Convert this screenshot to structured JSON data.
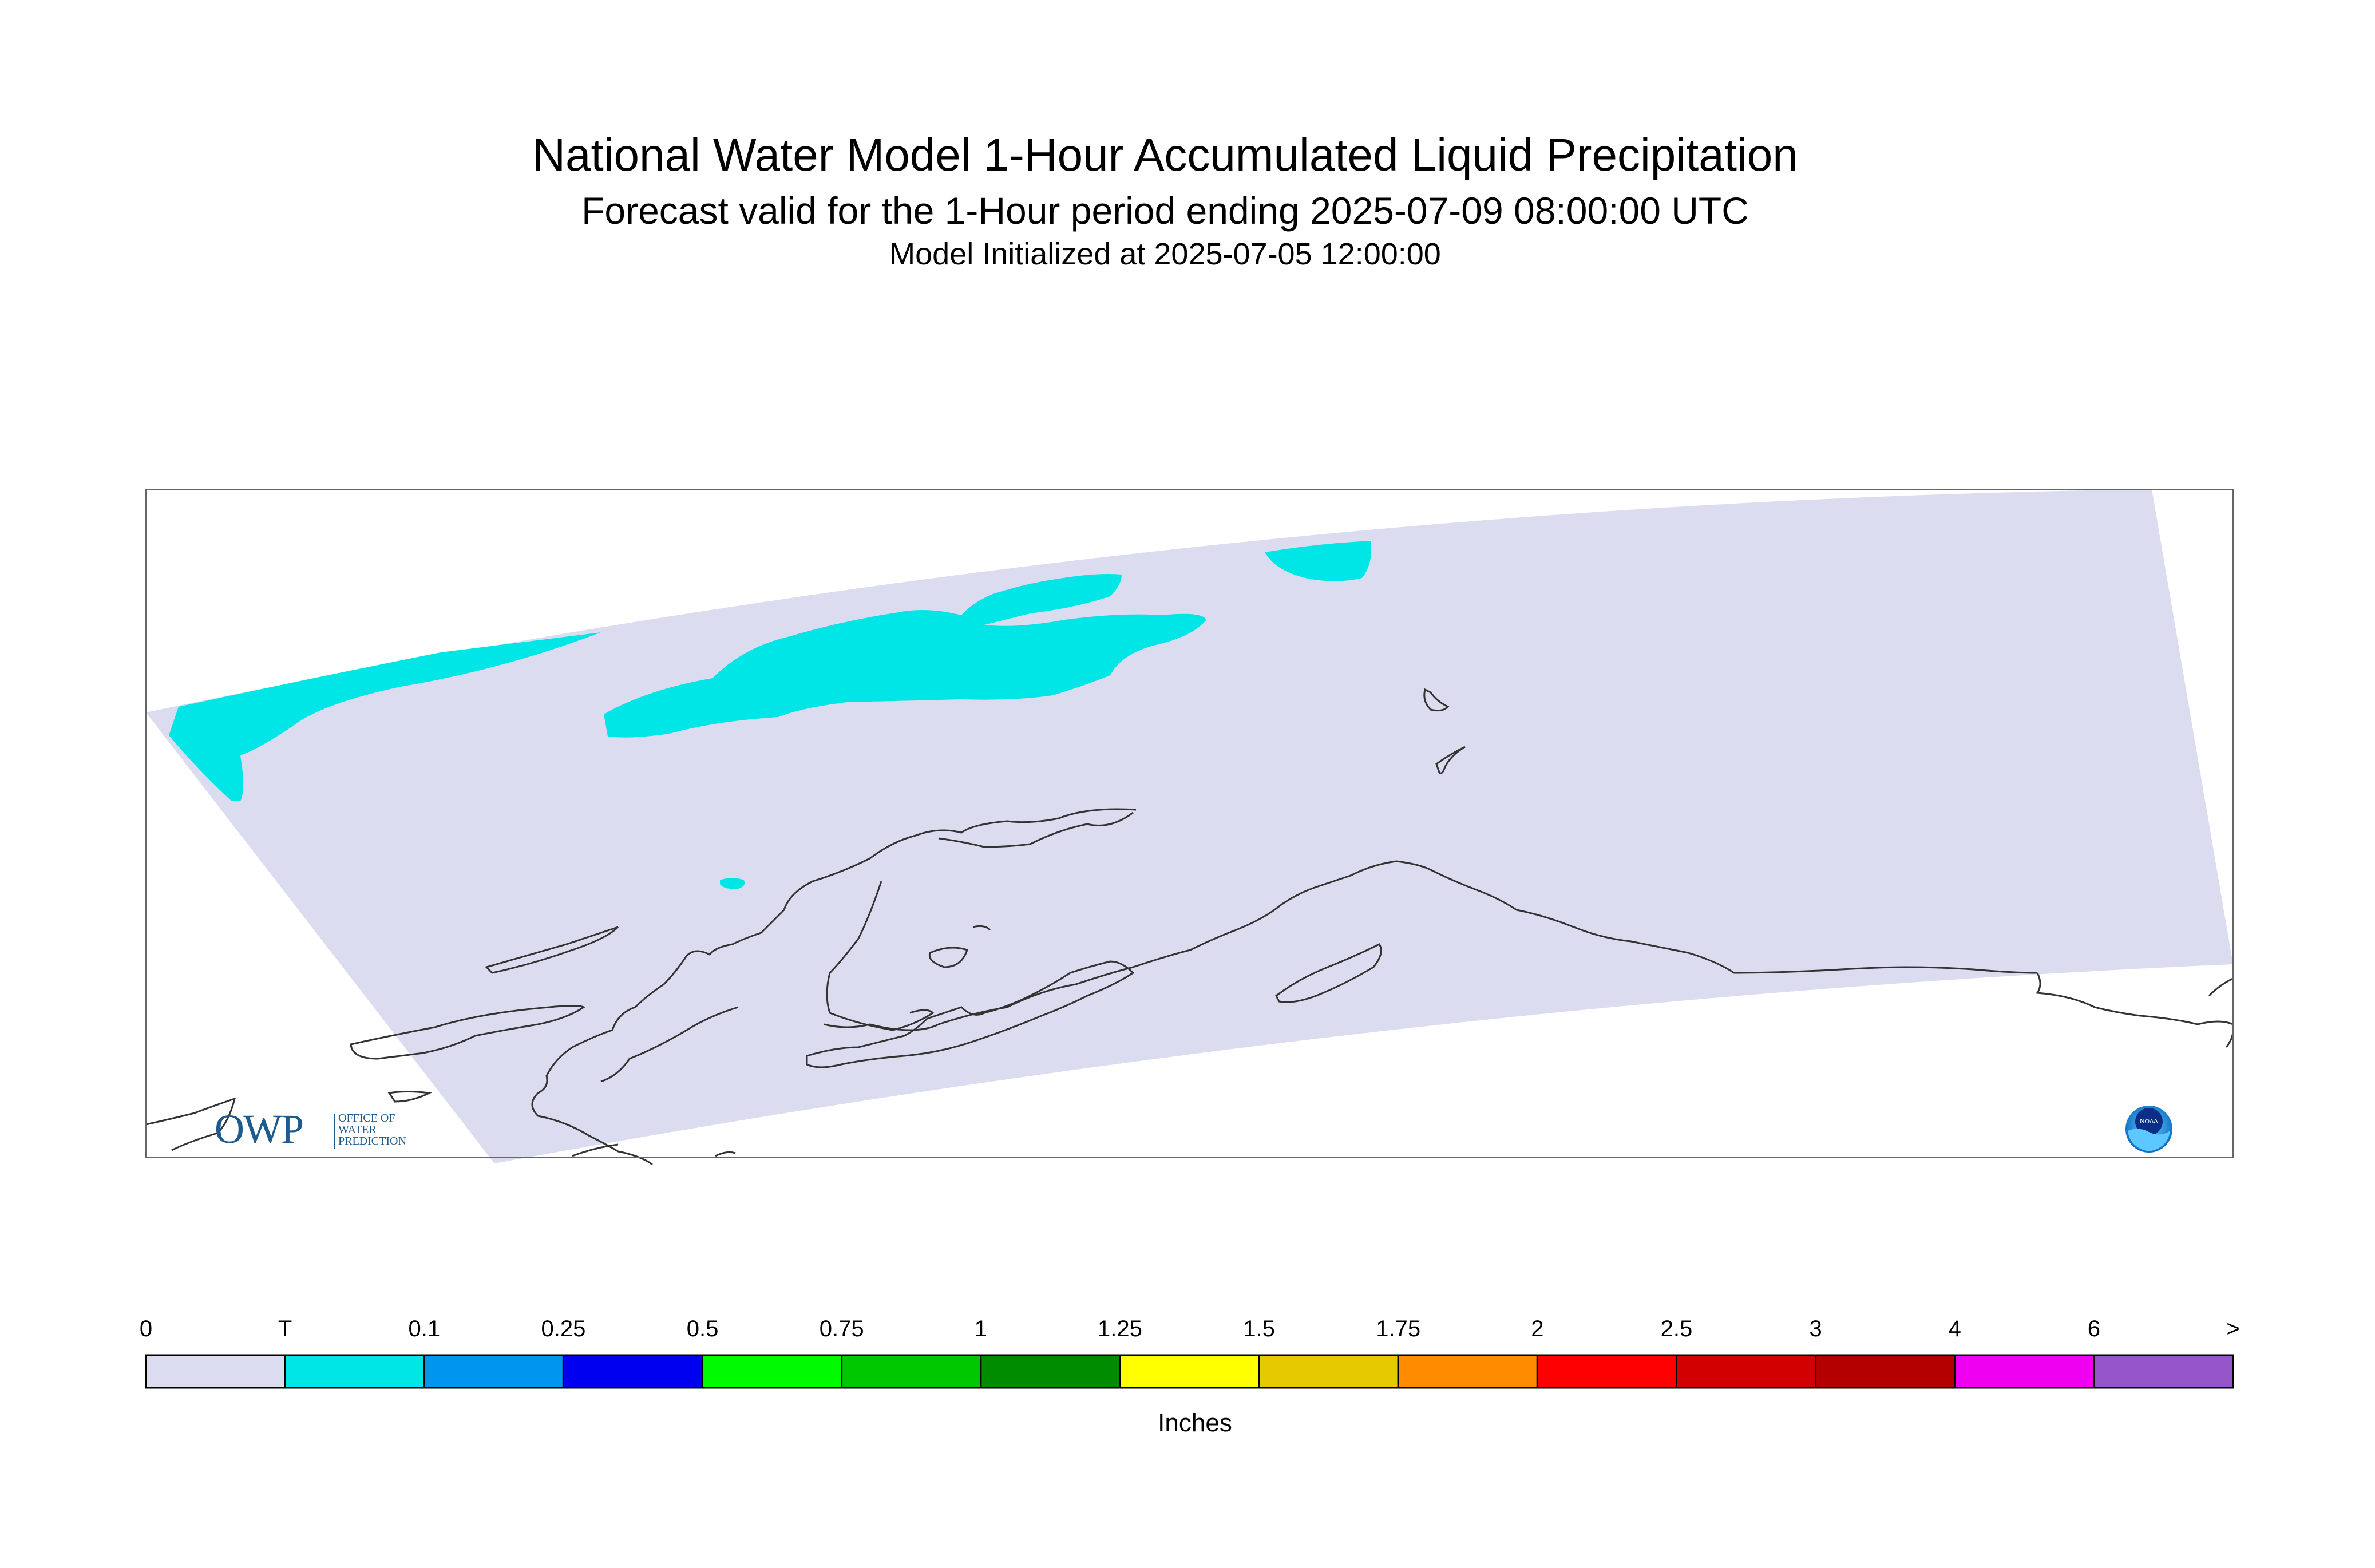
{
  "title": {
    "line1": "National Water Model 1-Hour Accumulated Liquid Precipitation",
    "line2": "Forecast valid for the 1-Hour period ending 2025-07-09 08:00:00 UTC",
    "line3": "Model Initialized at 2025-07-05 12:00:00"
  },
  "logos": {
    "owp_big": "OWP",
    "owp_small_1": "OFFICE OF",
    "owp_small_2": "WATER",
    "owp_small_3": "PREDICTION",
    "noaa": "NOAA"
  },
  "legend": {
    "units": "Inches",
    "labels": [
      "0",
      "T",
      "0.1",
      "0.25",
      "0.5",
      "0.75",
      "1",
      "1.25",
      "1.5",
      "1.75",
      "2",
      "2.5",
      "3",
      "4",
      "6",
      ">"
    ],
    "colors": [
      "#dcdcf0",
      "#00e6e6",
      "#0096f0",
      "#0000f0",
      "#00fa00",
      "#00c800",
      "#008c00",
      "#ffff00",
      "#e6c800",
      "#ff8c00",
      "#ff0000",
      "#d20000",
      "#b40000",
      "#f000f0",
      "#9655c8"
    ]
  },
  "map": {
    "domain_color": "#dcdcf0",
    "trace_color": "#00e6e6",
    "coast_color": "#333333",
    "precip_areas": [
      {
        "name": "northwest-edge",
        "category": "T"
      },
      {
        "name": "central-band",
        "category": "T"
      },
      {
        "name": "northern-cell",
        "category": "T"
      },
      {
        "name": "small-cell",
        "category": "T"
      }
    ]
  }
}
